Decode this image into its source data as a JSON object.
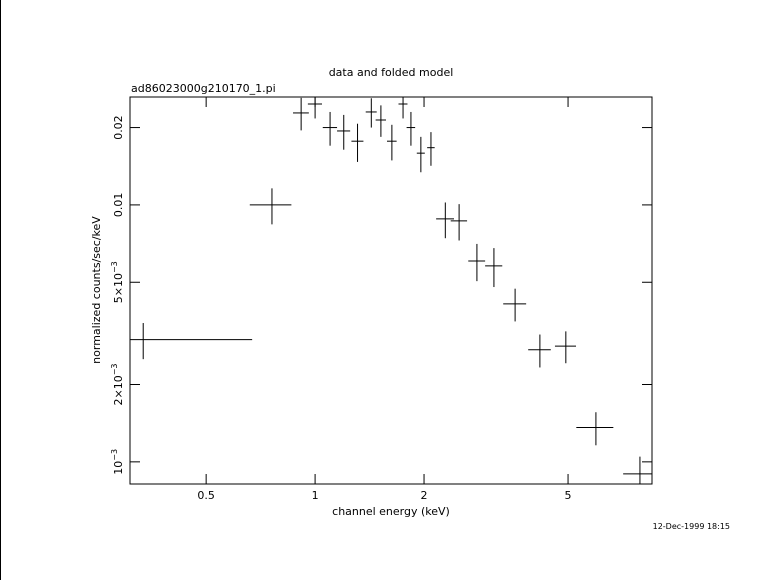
{
  "chart_data": {
    "type": "scatter",
    "title": "data and folded model",
    "subtitle": "ad86023000g210170_1.pi",
    "xlabel": "channel energy (keV)",
    "ylabel": "normalized counts/sec/keV",
    "timestamp": "12-Dec-1999 18:15",
    "xlog": true,
    "ylog": true,
    "color": "#000000",
    "xlim": [
      0.308,
      8.53
    ],
    "ylim": [
      0.00082,
      0.0263
    ],
    "xticks": [
      0.5,
      1,
      2,
      5
    ],
    "yticks": [
      {
        "value": 0.001,
        "label": "10",
        "exponent": "−3"
      },
      {
        "value": 0.002,
        "label": "2×10",
        "exponent": "−3"
      },
      {
        "value": 0.005,
        "label": "5×10",
        "exponent": "−3"
      },
      0.01,
      0.02
    ],
    "x": [
      0.335,
      0.76,
      0.915,
      1.0,
      1.1,
      1.2,
      1.31,
      1.43,
      1.52,
      1.63,
      1.75,
      1.84,
      1.96,
      2.09,
      2.29,
      2.5,
      2.8,
      3.12,
      3.57,
      4.18,
      4.93,
      5.97,
      7.9
    ],
    "xerr": [
      0.335,
      0.1,
      0.046,
      0.045,
      0.05,
      0.05,
      0.05,
      0.05,
      0.05,
      0.05,
      0.05,
      0.05,
      0.05,
      0.05,
      0.13,
      0.13,
      0.15,
      0.17,
      0.26,
      0.3,
      0.33,
      0.7,
      0.8
    ],
    "values": [
      0.00299,
      0.01,
      0.0228,
      0.0247,
      0.02,
      0.0194,
      0.0177,
      0.023,
      0.0214,
      0.0177,
      0.0247,
      0.02,
      0.0159,
      0.0167,
      0.00882,
      0.00867,
      0.00605,
      0.00579,
      0.00412,
      0.00273,
      0.00282,
      0.00136,
      0.000898
    ],
    "yerr": [
      0.00048,
      0.0016,
      0.0033,
      0.003,
      0.003,
      0.003,
      0.003,
      0.003,
      0.003,
      0.0028,
      0.003,
      0.003,
      0.0025,
      0.0025,
      0.0014,
      0.0014,
      0.001,
      0.001,
      0.0006,
      0.0004,
      0.0004,
      0.0002,
      0.00015
    ]
  }
}
